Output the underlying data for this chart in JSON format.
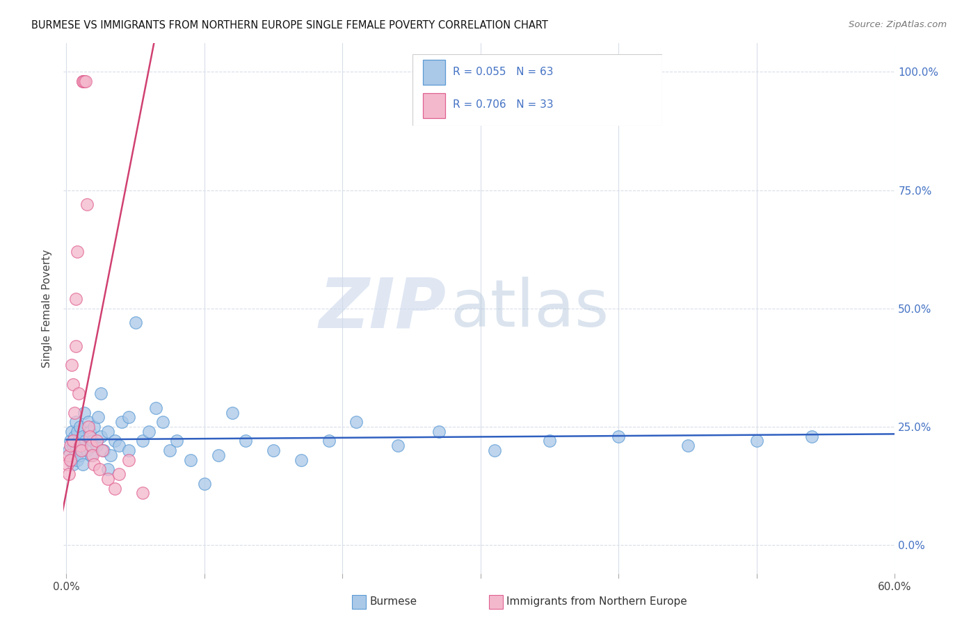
{
  "title": "BURMESE VS IMMIGRANTS FROM NORTHERN EUROPE SINGLE FEMALE POVERTY CORRELATION CHART",
  "source": "Source: ZipAtlas.com",
  "ylabel": "Single Female Poverty",
  "xmin": 0.0,
  "xmax": 0.6,
  "ymin": -0.06,
  "ymax": 1.06,
  "burmese_fill": "#aac8e8",
  "burmese_edge": "#5b9bd5",
  "ne_fill": "#f4b8cc",
  "ne_edge": "#e06090",
  "blue_line_color": "#3060c0",
  "pink_line_color": "#d04070",
  "legend_num_color": "#4472c4",
  "legend_text_color": "#222222",
  "R1": 0.055,
  "N1": 63,
  "R2": 0.706,
  "N2": 33,
  "label1": "Burmese",
  "label2": "Immigrants from Northern Europe",
  "ytick_vals": [
    0.0,
    0.25,
    0.5,
    0.75,
    1.0
  ],
  "ytick_labels": [
    "0.0%",
    "25.0%",
    "50.0%",
    "75.0%",
    "100.0%"
  ],
  "xtick_vals": [
    0.0,
    0.1,
    0.2,
    0.3,
    0.4,
    0.5,
    0.6
  ],
  "xtick_show": [
    "0.0%",
    "",
    "",
    "",
    "",
    "",
    "60.0%"
  ],
  "grid_color": "#d8dde8",
  "watermark_zip_color": "#ccd8ec",
  "watermark_atlas_color": "#b8cadf",
  "burmese_x": [
    0.002,
    0.003,
    0.004,
    0.004,
    0.005,
    0.005,
    0.006,
    0.006,
    0.007,
    0.007,
    0.008,
    0.008,
    0.009,
    0.01,
    0.01,
    0.011,
    0.012,
    0.012,
    0.013,
    0.014,
    0.015,
    0.016,
    0.017,
    0.018,
    0.019,
    0.02,
    0.022,
    0.023,
    0.025,
    0.027,
    0.03,
    0.032,
    0.035,
    0.038,
    0.04,
    0.045,
    0.05,
    0.055,
    0.06,
    0.065,
    0.07,
    0.075,
    0.08,
    0.09,
    0.1,
    0.11,
    0.12,
    0.13,
    0.15,
    0.17,
    0.19,
    0.21,
    0.24,
    0.27,
    0.31,
    0.35,
    0.4,
    0.45,
    0.5,
    0.54,
    0.025,
    0.03,
    0.045
  ],
  "burmese_y": [
    0.2,
    0.22,
    0.18,
    0.24,
    0.21,
    0.17,
    0.23,
    0.19,
    0.26,
    0.2,
    0.18,
    0.24,
    0.22,
    0.19,
    0.25,
    0.21,
    0.23,
    0.17,
    0.28,
    0.22,
    0.2,
    0.26,
    0.24,
    0.19,
    0.22,
    0.25,
    0.21,
    0.27,
    0.23,
    0.2,
    0.24,
    0.19,
    0.22,
    0.21,
    0.26,
    0.2,
    0.47,
    0.22,
    0.24,
    0.29,
    0.26,
    0.2,
    0.22,
    0.18,
    0.13,
    0.19,
    0.28,
    0.22,
    0.2,
    0.18,
    0.22,
    0.26,
    0.21,
    0.24,
    0.2,
    0.22,
    0.23,
    0.21,
    0.22,
    0.23,
    0.32,
    0.16,
    0.27
  ],
  "ne_x": [
    0.001,
    0.002,
    0.002,
    0.003,
    0.003,
    0.004,
    0.005,
    0.005,
    0.006,
    0.007,
    0.007,
    0.008,
    0.009,
    0.01,
    0.011,
    0.012,
    0.012,
    0.013,
    0.014,
    0.015,
    0.016,
    0.017,
    0.018,
    0.019,
    0.02,
    0.022,
    0.024,
    0.026,
    0.03,
    0.035,
    0.038,
    0.045,
    0.055
  ],
  "ne_y": [
    0.17,
    0.19,
    0.15,
    0.21,
    0.18,
    0.38,
    0.34,
    0.22,
    0.28,
    0.42,
    0.52,
    0.62,
    0.32,
    0.21,
    0.2,
    0.98,
    0.98,
    0.98,
    0.98,
    0.72,
    0.25,
    0.23,
    0.21,
    0.19,
    0.17,
    0.22,
    0.16,
    0.2,
    0.14,
    0.12,
    0.15,
    0.18,
    0.11
  ]
}
